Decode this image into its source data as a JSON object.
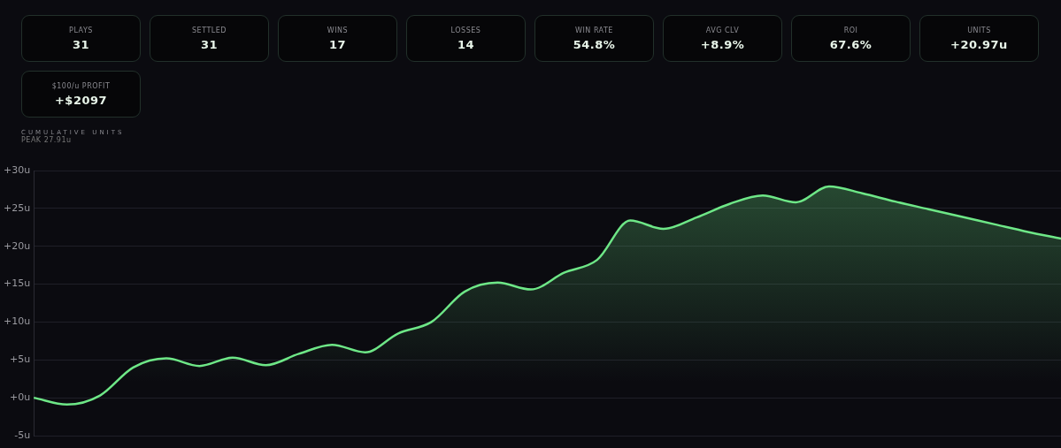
{
  "chart_data": [
    {
      "type": "other",
      "categories": [
        "PLAYS",
        "SETTLED",
        "WINS",
        "LOSSES",
        "WIN RATE",
        "AVG CLV",
        "ROI",
        "UNITS",
        "$100/u PROFIT"
      ],
      "value_labels": [
        "31",
        "31",
        "17",
        "14",
        "54.8%",
        "+8.9%",
        "67.6%",
        "+20.97u",
        "+$2097"
      ]
    },
    {
      "type": "area",
      "title": "CUMULATIVE UNITS",
      "subtitle": "PEAK 27.91u",
      "categories": [
        null,
        null,
        null,
        null,
        null,
        null,
        null,
        null,
        null,
        null,
        null,
        null,
        null,
        null,
        null,
        null,
        null,
        null,
        null,
        null,
        null,
        null,
        null,
        null,
        null,
        null,
        null,
        null,
        null,
        null,
        null,
        null
      ],
      "series": [
        {
          "color": "#6ee787",
          "values": [
            0,
            -0.9,
            0.3,
            4.0,
            5.2,
            4.2,
            5.3,
            4.3,
            5.8,
            7.0,
            6.0,
            8.5,
            10.0,
            14.0,
            15.2,
            14.3,
            16.5,
            18.2,
            23.4,
            22.3,
            23.8,
            25.6,
            26.7,
            25.8,
            27.9,
            27.0,
            25.9,
            24.9,
            23.9,
            22.9,
            21.9,
            21.0
          ]
        }
      ],
      "ylim": [
        -5,
        30
      ],
      "yticks": [
        {
          "value": -5,
          "label": "-5u"
        },
        {
          "value": 0,
          "label": "+0u"
        },
        {
          "value": 5,
          "label": "+5u"
        },
        {
          "value": 10,
          "label": "+10u"
        },
        {
          "value": 15,
          "label": "+15u"
        },
        {
          "value": 20,
          "label": "+20u"
        },
        {
          "value": 25,
          "label": "+25u"
        },
        {
          "value": 30,
          "label": "+30u"
        }
      ],
      "grid": "y",
      "marker": "none",
      "line_style": "solid",
      "tick_labels": "y"
    }
  ]
}
